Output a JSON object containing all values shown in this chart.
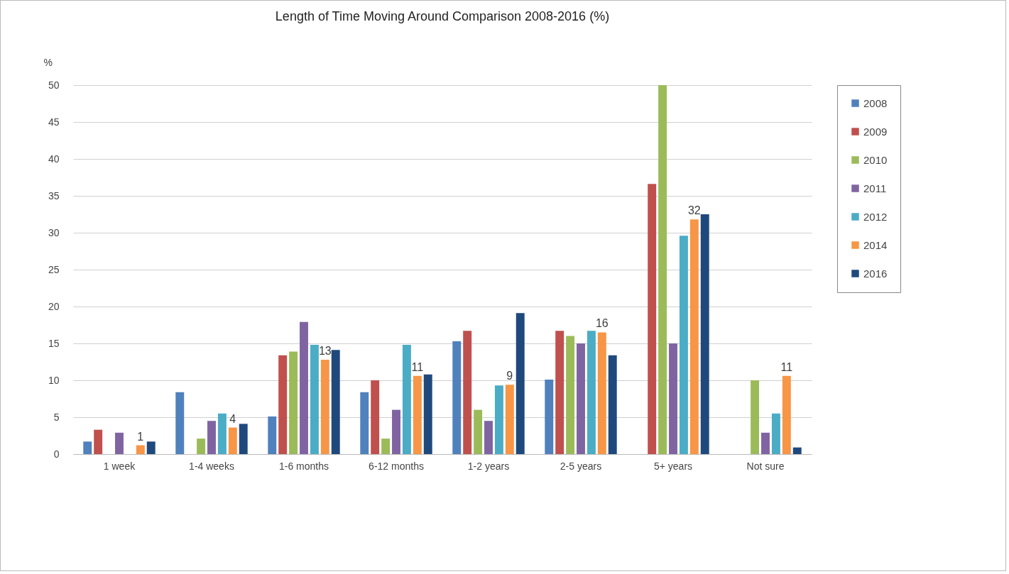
{
  "chart_data": {
    "type": "bar",
    "title": "Length of Time Moving Around Comparison 2008-2016 (%)",
    "ylabel": "%",
    "categories": [
      "1 week",
      "1-4 weeks",
      "1-6 months",
      "6-12 months",
      "1-2 years",
      "2-5 years",
      "5+ years",
      "Not sure"
    ],
    "series": [
      {
        "name": "2008",
        "color": "#4f81bd",
        "values": [
          1.7,
          8.4,
          5.1,
          8.4,
          15.3,
          10.1,
          null,
          null
        ]
      },
      {
        "name": "2009",
        "color": "#c0504d",
        "values": [
          3.3,
          null,
          13.4,
          10.0,
          16.7,
          16.7,
          36.6,
          null
        ]
      },
      {
        "name": "2010",
        "color": "#9bbb59",
        "values": [
          null,
          2.1,
          13.9,
          2.1,
          6.0,
          16.0,
          50,
          10.0
        ]
      },
      {
        "name": "2011",
        "color": "#8064a2",
        "values": [
          2.9,
          4.5,
          17.9,
          6.0,
          4.5,
          15.0,
          15.0,
          2.9
        ]
      },
      {
        "name": "2012",
        "color": "#4bacc6",
        "values": [
          null,
          5.5,
          14.8,
          14.8,
          9.3,
          16.7,
          29.6,
          5.5
        ]
      },
      {
        "name": "2014",
        "color": "#f79646",
        "values": [
          1.2,
          3.6,
          12.8,
          10.6,
          9.4,
          16.5,
          31.8,
          10.6
        ],
        "value_labels": [
          "1",
          "4",
          "13",
          "11",
          "9",
          "16",
          "32",
          "11"
        ]
      },
      {
        "name": "2016",
        "color": "#1f497d",
        "values": [
          1.7,
          4.1,
          14.1,
          10.8,
          19.1,
          13.4,
          32.5,
          0.9
        ]
      }
    ],
    "ylim": [
      0,
      50
    ],
    "yticks": [
      0,
      5,
      10,
      15,
      20,
      25,
      30,
      35,
      40,
      45,
      50
    ],
    "grid": "y",
    "legend": "right"
  }
}
